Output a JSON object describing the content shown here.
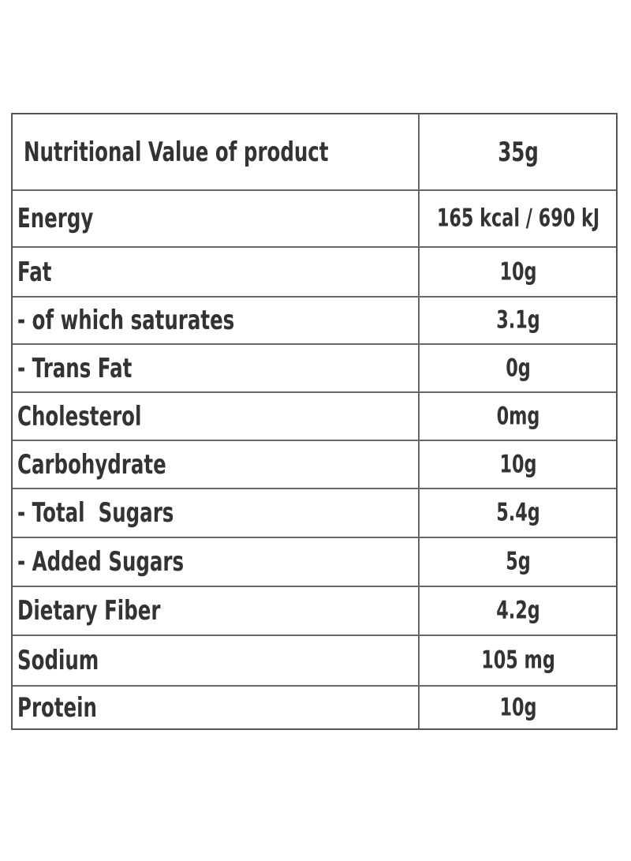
{
  "header": {
    "title": "Nutritional Value of product",
    "serving": "35g"
  },
  "table": {
    "rows": [
      [
        "Energy",
        "165 kcal / 690 kJ"
      ],
      [
        "Fat",
        "10g"
      ],
      [
        "- of which saturates",
        "3.1g"
      ],
      [
        "- Trans Fat",
        "0g"
      ],
      [
        "Cholesterol",
        "0mg"
      ],
      [
        "Carbohydrate",
        "10g"
      ],
      [
        "- Total  Sugars",
        "5.4g"
      ],
      [
        "- Added Sugars",
        "5g"
      ],
      [
        "Dietary Fiber",
        "4.2g"
      ],
      [
        "Sodium",
        "105 mg"
      ],
      [
        "Protein",
        "10g"
      ]
    ]
  }
}
